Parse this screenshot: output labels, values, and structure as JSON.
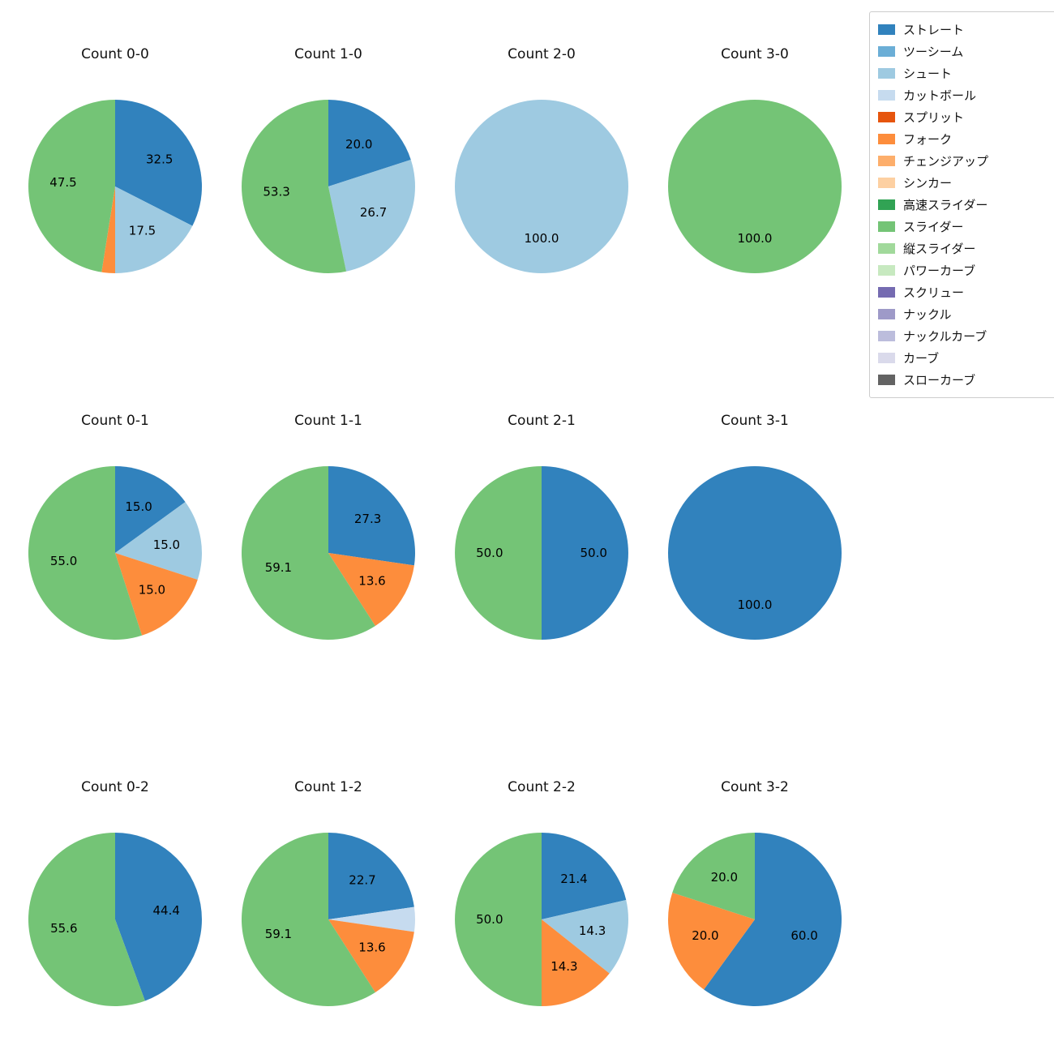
{
  "page": {
    "background": "#ffffff"
  },
  "colors": {
    "ストレート": "#3182bd",
    "ツーシーム": "#6baed6",
    "シュート": "#9ecae1",
    "カットボール": "#c6dbef",
    "スプリット": "#e6550d",
    "フォーク": "#fd8d3c",
    "チェンジアップ": "#fdae6b",
    "シンカー": "#fdd0a2",
    "高速スライダー": "#31a354",
    "スライダー": "#74c476",
    "縦スライダー": "#a1d99b",
    "パワーカーブ": "#c7e9c0",
    "スクリュー": "#756bb1",
    "ナックル": "#9e9ac8",
    "ナックルカーブ": "#bcbddc",
    "カーブ": "#dadaeb",
    "スローカーブ": "#636363"
  },
  "legend": {
    "items": [
      "ストレート",
      "ツーシーム",
      "シュート",
      "カットボール",
      "スプリット",
      "フォーク",
      "チェンジアップ",
      "シンカー",
      "高速スライダー",
      "スライダー",
      "縦スライダー",
      "パワーカーブ",
      "スクリュー",
      "ナックル",
      "ナックルカーブ",
      "カーブ",
      "スローカーブ"
    ]
  },
  "chart_data": [
    {
      "type": "pie",
      "title": "Count 0-0",
      "start_angle_deg_from_top_clockwise": 0,
      "slices": [
        {
          "pitch": "ストレート",
          "value": 32.5,
          "label": "32.5"
        },
        {
          "pitch": "シュート",
          "value": 17.5,
          "label": "17.5"
        },
        {
          "pitch": "フォーク",
          "value": 2.5,
          "label": ""
        },
        {
          "pitch": "スライダー",
          "value": 47.5,
          "label": "47.5"
        }
      ]
    },
    {
      "type": "pie",
      "title": "Count 1-0",
      "slices": [
        {
          "pitch": "ストレート",
          "value": 20.0,
          "label": "20.0"
        },
        {
          "pitch": "シュート",
          "value": 26.7,
          "label": "26.7"
        },
        {
          "pitch": "スライダー",
          "value": 53.3,
          "label": "53.3"
        }
      ]
    },
    {
      "type": "pie",
      "title": "Count 2-0",
      "slices": [
        {
          "pitch": "シュート",
          "value": 100.0,
          "label": "100.0"
        }
      ]
    },
    {
      "type": "pie",
      "title": "Count 3-0",
      "slices": [
        {
          "pitch": "スライダー",
          "value": 100.0,
          "label": "100.0"
        }
      ]
    },
    {
      "type": "pie",
      "title": "Count 0-1",
      "slices": [
        {
          "pitch": "ストレート",
          "value": 15.0,
          "label": "15.0"
        },
        {
          "pitch": "シュート",
          "value": 15.0,
          "label": "15.0"
        },
        {
          "pitch": "フォーク",
          "value": 15.0,
          "label": "15.0"
        },
        {
          "pitch": "スライダー",
          "value": 55.0,
          "label": "55.0"
        }
      ]
    },
    {
      "type": "pie",
      "title": "Count 1-1",
      "slices": [
        {
          "pitch": "ストレート",
          "value": 27.3,
          "label": "27.3"
        },
        {
          "pitch": "フォーク",
          "value": 13.6,
          "label": "13.6"
        },
        {
          "pitch": "スライダー",
          "value": 59.1,
          "label": "59.1"
        }
      ]
    },
    {
      "type": "pie",
      "title": "Count 2-1",
      "slices": [
        {
          "pitch": "ストレート",
          "value": 50.0,
          "label": "50.0"
        },
        {
          "pitch": "スライダー",
          "value": 50.0,
          "label": "50.0"
        }
      ]
    },
    {
      "type": "pie",
      "title": "Count 3-1",
      "slices": [
        {
          "pitch": "ストレート",
          "value": 100.0,
          "label": "100.0"
        }
      ]
    },
    {
      "type": "pie",
      "title": "Count 0-2",
      "slices": [
        {
          "pitch": "ストレート",
          "value": 44.4,
          "label": "44.4"
        },
        {
          "pitch": "スライダー",
          "value": 55.6,
          "label": "55.6"
        }
      ]
    },
    {
      "type": "pie",
      "title": "Count 1-2",
      "slices": [
        {
          "pitch": "ストレート",
          "value": 22.7,
          "label": "22.7"
        },
        {
          "pitch": "カットボール",
          "value": 4.6,
          "label": ""
        },
        {
          "pitch": "フォーク",
          "value": 13.6,
          "label": "13.6"
        },
        {
          "pitch": "スライダー",
          "value": 59.1,
          "label": "59.1"
        }
      ]
    },
    {
      "type": "pie",
      "title": "Count 2-2",
      "slices": [
        {
          "pitch": "ストレート",
          "value": 21.4,
          "label": "21.4"
        },
        {
          "pitch": "シュート",
          "value": 14.3,
          "label": "14.3"
        },
        {
          "pitch": "フォーク",
          "value": 14.3,
          "label": "14.3"
        },
        {
          "pitch": "スライダー",
          "value": 50.0,
          "label": "50.0"
        }
      ]
    },
    {
      "type": "pie",
      "title": "Count 3-2",
      "slices": [
        {
          "pitch": "ストレート",
          "value": 60.0,
          "label": "60.0"
        },
        {
          "pitch": "フォーク",
          "value": 20.0,
          "label": "20.0"
        },
        {
          "pitch": "スライダー",
          "value": 20.0,
          "label": "20.0"
        }
      ]
    }
  ]
}
